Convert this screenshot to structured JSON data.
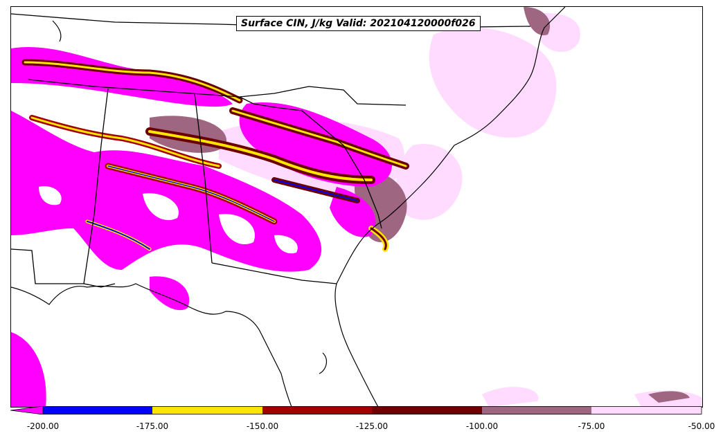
{
  "title": "Surface CIN, J/kg Valid: 202104120000f026",
  "colorbar": {
    "ticks": [
      "-200.00",
      "-175.00",
      "-150.00",
      "-125.00",
      "-100.00",
      "-75.00",
      "-50.00"
    ],
    "colors": [
      "#0000ff",
      "#ffe600",
      "#a30000",
      "#6b0000",
      "#9e6680",
      "#ffdcff"
    ],
    "under_color": "#ff00ff"
  },
  "map": {
    "region": "Southeastern United States",
    "field_colors": {
      "below_-200": "#ff00ff",
      "-200_to_-175": "#0000ff",
      "-175_to_-150": "#ffe600",
      "-150_to_-125": "#a30000",
      "-125_to_-100": "#6b0000",
      "-100_to_-75": "#9e6680",
      "-75_to_-50": "#ffdcff"
    }
  }
}
